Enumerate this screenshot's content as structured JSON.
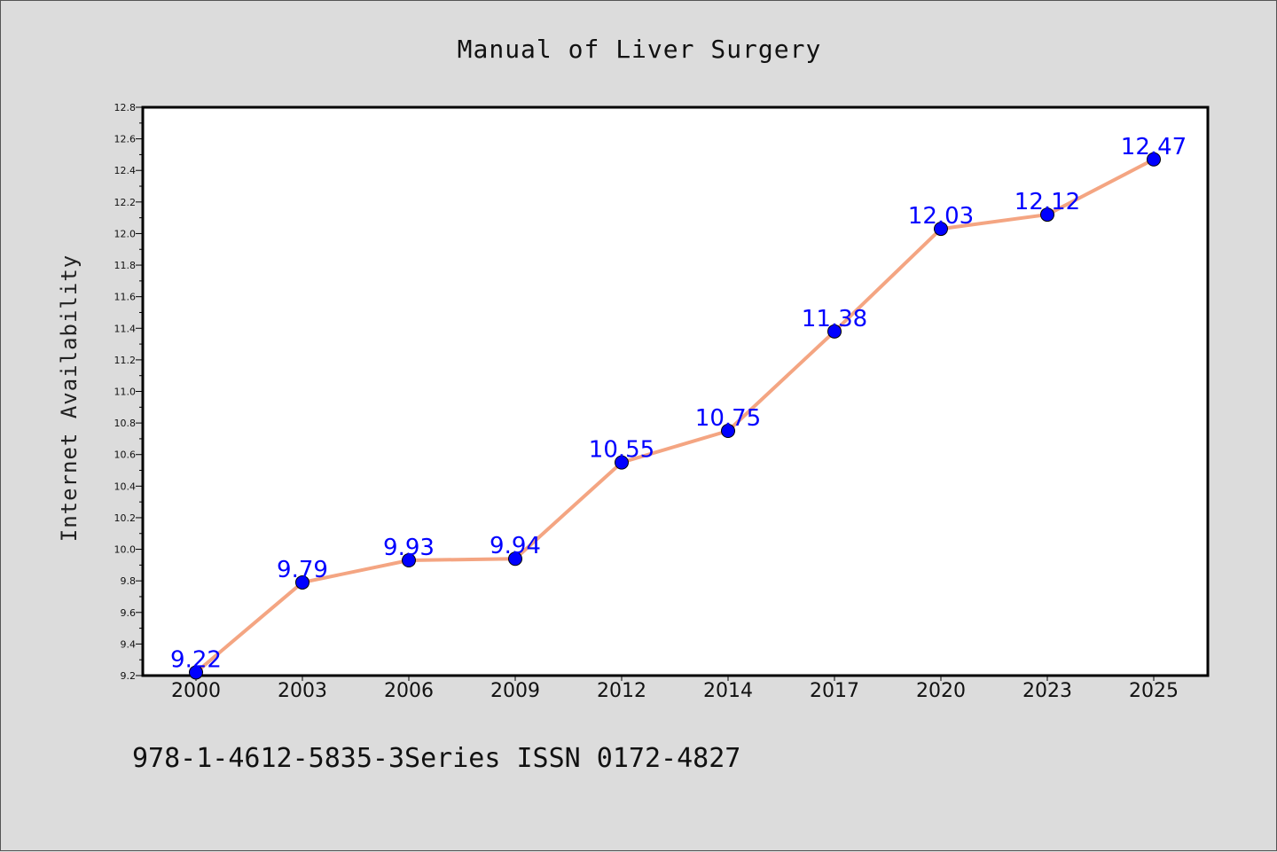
{
  "chart_data": {
    "type": "line",
    "title": "Manual of Liver Surgery",
    "ylabel": "Internet Availability",
    "xlabel": "",
    "footer": "978-1-4612-5835-3Series ISSN 0172-4827",
    "categories": [
      "2000",
      "2003",
      "2006",
      "2009",
      "2012",
      "2014",
      "2017",
      "2020",
      "2023",
      "2025"
    ],
    "values": [
      9.22,
      9.79,
      9.93,
      9.94,
      10.55,
      10.75,
      11.38,
      12.03,
      12.12,
      12.47
    ],
    "data_labels": [
      "9.22",
      "9.79",
      "9.93",
      "9.94",
      "10.55",
      "10.75",
      "11.38",
      "12.03",
      "12.12",
      "12.47"
    ],
    "ylim": [
      9.2,
      12.8
    ],
    "yticks": [
      "9.2",
      "9.4",
      "9.6",
      "9.8",
      "10.0",
      "10.2",
      "10.4",
      "10.6",
      "10.8",
      "11.0",
      "11.2",
      "11.4",
      "11.6",
      "11.8",
      "12.0",
      "12.2",
      "12.4",
      "12.6",
      "12.8"
    ],
    "grid": false,
    "colors": {
      "line": "#f4a582",
      "marker": "#0000ff",
      "label": "#0000ff",
      "background": "#dcdcdc",
      "plot_background": "#ffffff"
    }
  }
}
